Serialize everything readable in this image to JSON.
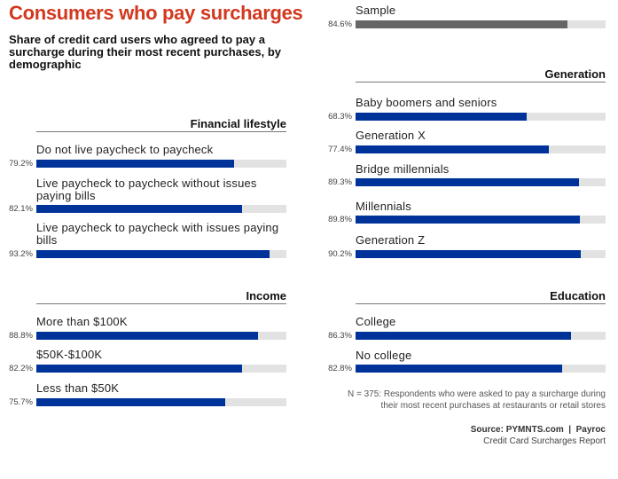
{
  "title": "Consumers who pay surcharges",
  "subtitle": "Share of credit card users who agreed to pay a surcharge during their most recent purchases, by demographic",
  "note": "N = 375: Respondents who were asked to pay a surcharge during their most recent purchases at restaurants or retail stores",
  "source": {
    "bold": "Source: PYMNTS.com  |  Payroc",
    "report": "Credit Card Surcharges Report"
  },
  "colors": {
    "title": "#d2381f",
    "bar": "#003399",
    "sample_bar": "#666666",
    "track": "#e2e2e2"
  },
  "chart_data": {
    "type": "bar",
    "orientation": "horizontal",
    "unit": "%",
    "xlim": [
      0,
      100
    ],
    "groups": [
      {
        "name": "",
        "items": [
          {
            "label": "Sample",
            "value": 84.6,
            "display": "84.6%"
          }
        ]
      },
      {
        "name": "Financial lifestyle",
        "items": [
          {
            "label": "Do not live paycheck to paycheck",
            "value": 79.2,
            "display": "79.2%"
          },
          {
            "label": "Live paycheck to paycheck without issues paying bills",
            "value": 82.1,
            "display": "82.1%"
          },
          {
            "label": "Live paycheck to paycheck with issues paying bills",
            "value": 93.2,
            "display": "93.2%"
          }
        ]
      },
      {
        "name": "Income",
        "items": [
          {
            "label": "More than $100K",
            "value": 88.8,
            "display": "88.8%"
          },
          {
            "label": "$50K-$100K",
            "value": 82.2,
            "display": "82.2%"
          },
          {
            "label": "Less than $50K",
            "value": 75.7,
            "display": "75.7%"
          }
        ]
      },
      {
        "name": "Generation",
        "items": [
          {
            "label": "Baby boomers and seniors",
            "value": 68.3,
            "display": "68.3%"
          },
          {
            "label": "Generation X",
            "value": 77.4,
            "display": "77.4%"
          },
          {
            "label": "Bridge millennials",
            "value": 89.3,
            "display": "89.3%"
          },
          {
            "label": "Millennials",
            "value": 89.8,
            "display": "89.8%"
          },
          {
            "label": "Generation Z",
            "value": 90.2,
            "display": "90.2%"
          }
        ]
      },
      {
        "name": "Education",
        "items": [
          {
            "label": "College",
            "value": 86.3,
            "display": "86.3%"
          },
          {
            "label": "No college",
            "value": 82.8,
            "display": "82.8%"
          }
        ]
      }
    ]
  }
}
